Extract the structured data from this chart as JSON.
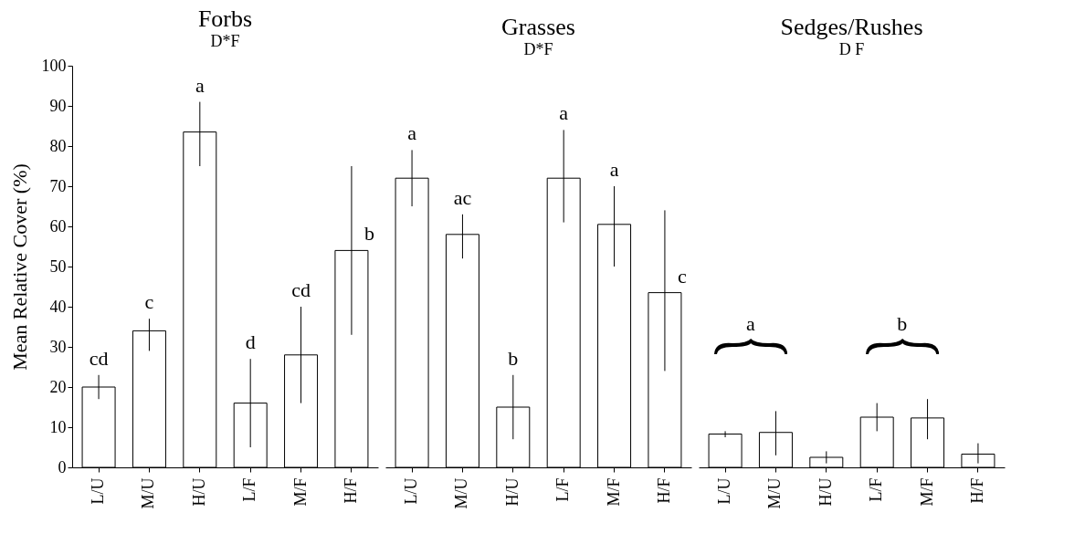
{
  "chart_data": [
    {
      "type": "bar",
      "title": "Forbs",
      "subtitle": "D*F",
      "ylabel": "Mean Relative Cover (%)",
      "categories": [
        "L/U",
        "M/U",
        "H/U",
        "L/F",
        "M/F",
        "H/F"
      ],
      "color": "#ffffff",
      "values": [
        20,
        34,
        83.5,
        16,
        28,
        54
      ],
      "errors": [
        [
          17,
          23
        ],
        [
          29,
          37
        ],
        [
          75,
          91
        ],
        [
          5,
          27
        ],
        [
          16,
          40
        ],
        [
          33,
          75
        ]
      ],
      "value_labels": [
        "cd",
        "c",
        "a",
        "d",
        "cd",
        "b"
      ],
      "ylim": [
        0,
        100
      ],
      "yticks": [
        0,
        10,
        20,
        30,
        40,
        50,
        60,
        70,
        80,
        90,
        100
      ]
    },
    {
      "type": "bar",
      "title": "Grasses",
      "subtitle": "D*F",
      "categories": [
        "L/U",
        "M/U",
        "H/U",
        "L/F",
        "M/F",
        "H/F"
      ],
      "color": "#ffffff",
      "values": [
        72,
        58,
        15,
        72,
        60.5,
        43.5
      ],
      "errors": [
        [
          65,
          79
        ],
        [
          52,
          63
        ],
        [
          7,
          23
        ],
        [
          61,
          84
        ],
        [
          50,
          70
        ],
        [
          24,
          64
        ]
      ],
      "value_labels": [
        "a",
        "ac",
        "b",
        "a",
        "a",
        "c"
      ],
      "ylim": [
        0,
        100
      ],
      "yticks": [
        0,
        10,
        20,
        30,
        40,
        50,
        60,
        70,
        80,
        90,
        100
      ],
      "tick_labels": "x"
    },
    {
      "type": "bar",
      "title": "Sedges/Rushes",
      "subtitle": "D F",
      "categories": [
        "L/U",
        "M/U",
        "H/U",
        "L/F",
        "M/F",
        "H/F"
      ],
      "color": "#ffffff",
      "values": [
        8.3,
        8.7,
        2.5,
        12.5,
        12.3,
        3.3
      ],
      "errors": [
        [
          7.5,
          9
        ],
        [
          3,
          14
        ],
        [
          1,
          4
        ],
        [
          9,
          16
        ],
        [
          7,
          17
        ],
        [
          1,
          6
        ]
      ],
      "annotations": [
        "a",
        "b"
      ],
      "ylim": [
        0,
        100
      ],
      "yticks": [
        0,
        10,
        20,
        30,
        40,
        50,
        60,
        70,
        80,
        90,
        100
      ],
      "tick_labels": "x"
    }
  ]
}
